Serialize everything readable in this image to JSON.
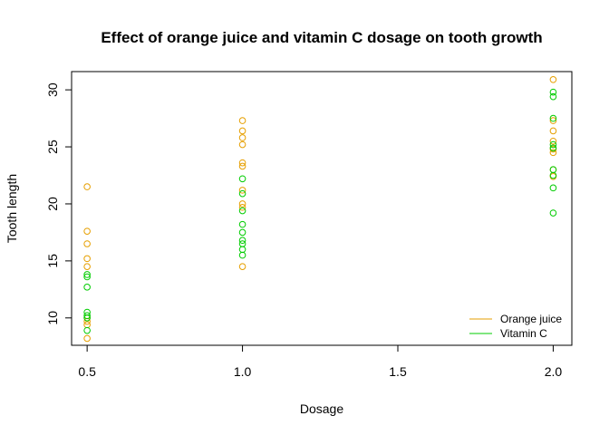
{
  "chart_data": {
    "type": "scatter",
    "title": "Effect of orange juice and vitamin C dosage on tooth growth",
    "xlabel": "Dosage",
    "ylabel": "Tooth length",
    "xlim": [
      0.45,
      2.06
    ],
    "ylim": [
      7.6,
      31.6
    ],
    "xticks": [
      0.5,
      1.0,
      1.5,
      2.0
    ],
    "xtick_labels": [
      "0.5",
      "1.0",
      "1.5",
      "2.0"
    ],
    "yticks": [
      10,
      15,
      20,
      25,
      30
    ],
    "yticks_labels": [
      "10",
      "15",
      "20",
      "25",
      "30"
    ],
    "grid": false,
    "legend_position": "bottom-right",
    "series": [
      {
        "name": "Orange juice",
        "color": "#E69F00",
        "points": [
          [
            0.5,
            21.5
          ],
          [
            0.5,
            17.6
          ],
          [
            0.5,
            16.5
          ],
          [
            0.5,
            15.2
          ],
          [
            0.5,
            14.5
          ],
          [
            0.5,
            10.0
          ],
          [
            0.5,
            9.7
          ],
          [
            0.5,
            9.4
          ],
          [
            0.5,
            8.2
          ],
          [
            1.0,
            27.3
          ],
          [
            1.0,
            26.4
          ],
          [
            1.0,
            25.8
          ],
          [
            1.0,
            25.2
          ],
          [
            1.0,
            23.6
          ],
          [
            1.0,
            23.3
          ],
          [
            1.0,
            21.2
          ],
          [
            1.0,
            20.0
          ],
          [
            1.0,
            19.7
          ],
          [
            1.0,
            14.5
          ],
          [
            2.0,
            30.9
          ],
          [
            2.0,
            27.3
          ],
          [
            2.0,
            26.4
          ],
          [
            2.0,
            25.5
          ],
          [
            2.0,
            24.8
          ],
          [
            2.0,
            24.5
          ],
          [
            2.0,
            23.0
          ],
          [
            2.0,
            22.4
          ]
        ]
      },
      {
        "name": "Vitamin C",
        "color": "#00CC00",
        "points": [
          [
            0.5,
            13.8
          ],
          [
            0.5,
            13.6
          ],
          [
            0.5,
            12.7
          ],
          [
            0.5,
            10.5
          ],
          [
            0.5,
            10.2
          ],
          [
            0.5,
            10.0
          ],
          [
            0.5,
            8.9
          ],
          [
            1.0,
            22.2
          ],
          [
            1.0,
            20.9
          ],
          [
            1.0,
            19.4
          ],
          [
            1.0,
            18.2
          ],
          [
            1.0,
            17.5
          ],
          [
            1.0,
            16.8
          ],
          [
            1.0,
            16.5
          ],
          [
            1.0,
            16.0
          ],
          [
            1.0,
            15.5
          ],
          [
            2.0,
            29.8
          ],
          [
            2.0,
            29.4
          ],
          [
            2.0,
            27.5
          ],
          [
            2.0,
            25.2
          ],
          [
            2.0,
            24.9
          ],
          [
            2.0,
            23.0
          ],
          [
            2.0,
            22.5
          ],
          [
            2.0,
            21.4
          ],
          [
            2.0,
            19.2
          ]
        ]
      }
    ]
  }
}
